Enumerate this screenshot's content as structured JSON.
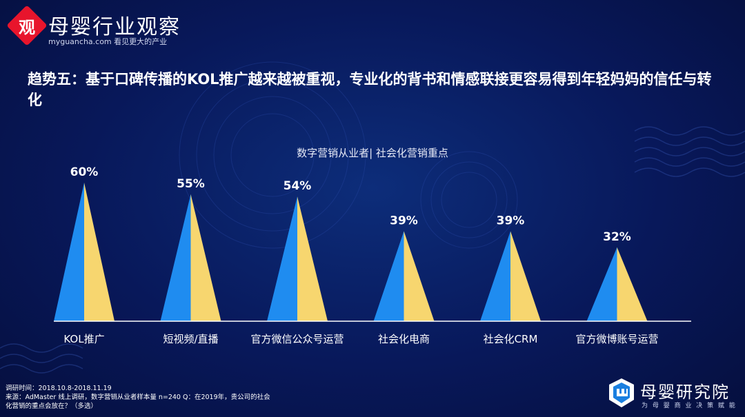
{
  "header": {
    "logo_char": "观",
    "logo_name": "母婴行业观察",
    "logo_sub": "myguancha.com 看见更大的产业"
  },
  "headline": "趋势五：基于口碑传播的KOL推广越来越被重视，专业化的背书和情感联接更容易得到年轻妈妈的信任与转化",
  "chart_data": {
    "type": "bar",
    "title": "数字营销从业者| 社会化营销重点",
    "categories": [
      "KOL推广",
      "短视频/直播",
      "官方微信公众号运营",
      "社会化电商",
      "社会化CRM",
      "官方微博账号运营"
    ],
    "values": [
      60,
      55,
      54,
      39,
      39,
      32
    ],
    "data_labels": [
      "60%",
      "55%",
      "54%",
      "39%",
      "39%",
      "32%"
    ],
    "unit": "%",
    "ylim": [
      0,
      60
    ],
    "grid": false,
    "colors": {
      "left": "#1f8cf0",
      "right": "#f7d66f",
      "baseline": "#ffffff"
    }
  },
  "footnote": {
    "line1": "调研时间：2018.10.8-2018.11.19",
    "line2": "来源：AdMaster 线上调研，数字营销从业者样本量 n=240 Q：在2019年，贵公司的社会",
    "line3": "化营销的重点会放在？（多选）"
  },
  "brand": {
    "name": "母婴研究院",
    "slogan": "为 母 婴 商 业 决 策 赋 能"
  }
}
